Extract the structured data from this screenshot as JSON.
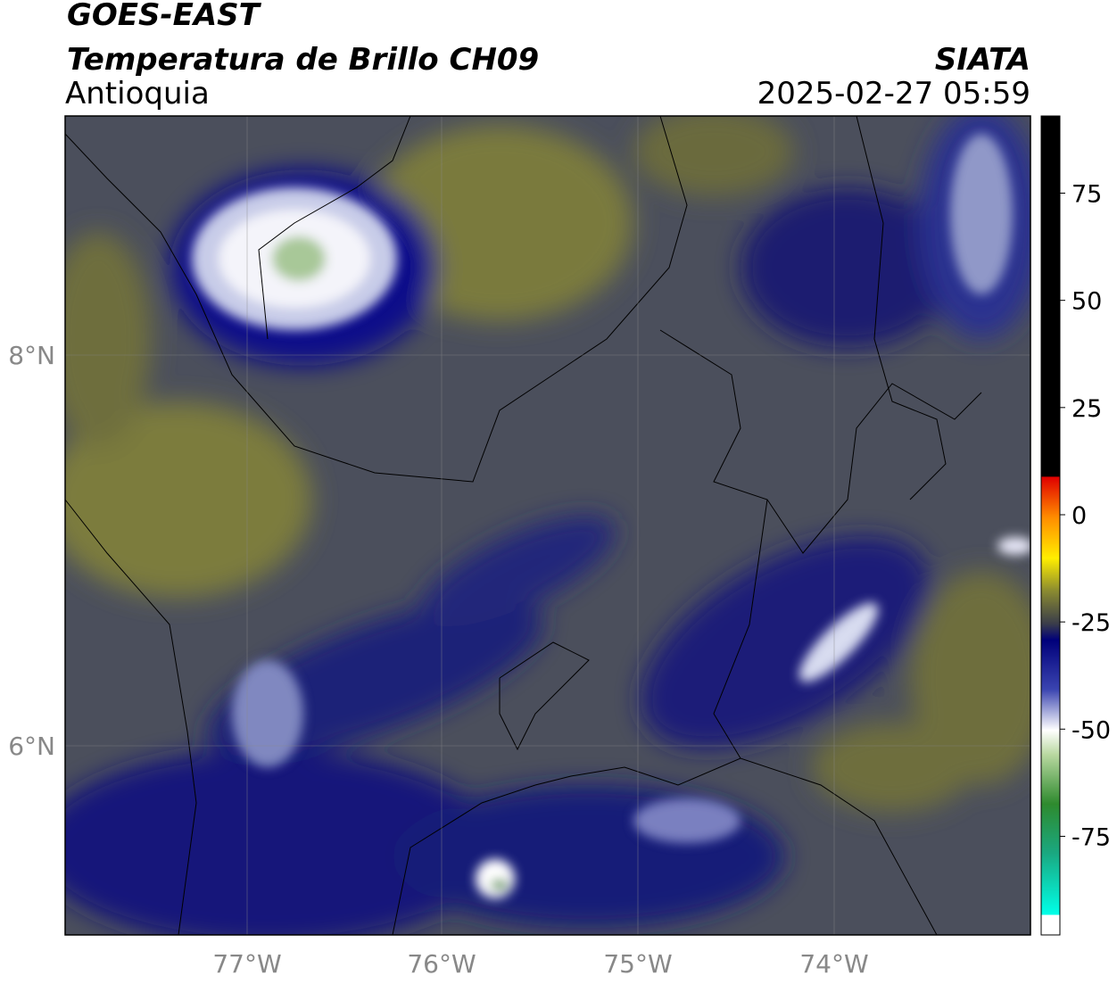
{
  "header": {
    "title": "GOES-EAST",
    "subtitle": "Temperatura de Brillo CH09",
    "region": "Antioquia",
    "source": "SIATA",
    "datetime": "2025-02-27 05:59"
  },
  "map": {
    "lat_ticks": [
      "8°N",
      "6°N"
    ],
    "lon_ticks": [
      "77°W",
      "76°W",
      "75°W",
      "74°W"
    ]
  },
  "colorbar": {
    "range": [
      -98,
      93
    ],
    "ticks": [
      75,
      50,
      25,
      0,
      -25,
      -50,
      -75
    ]
  }
}
